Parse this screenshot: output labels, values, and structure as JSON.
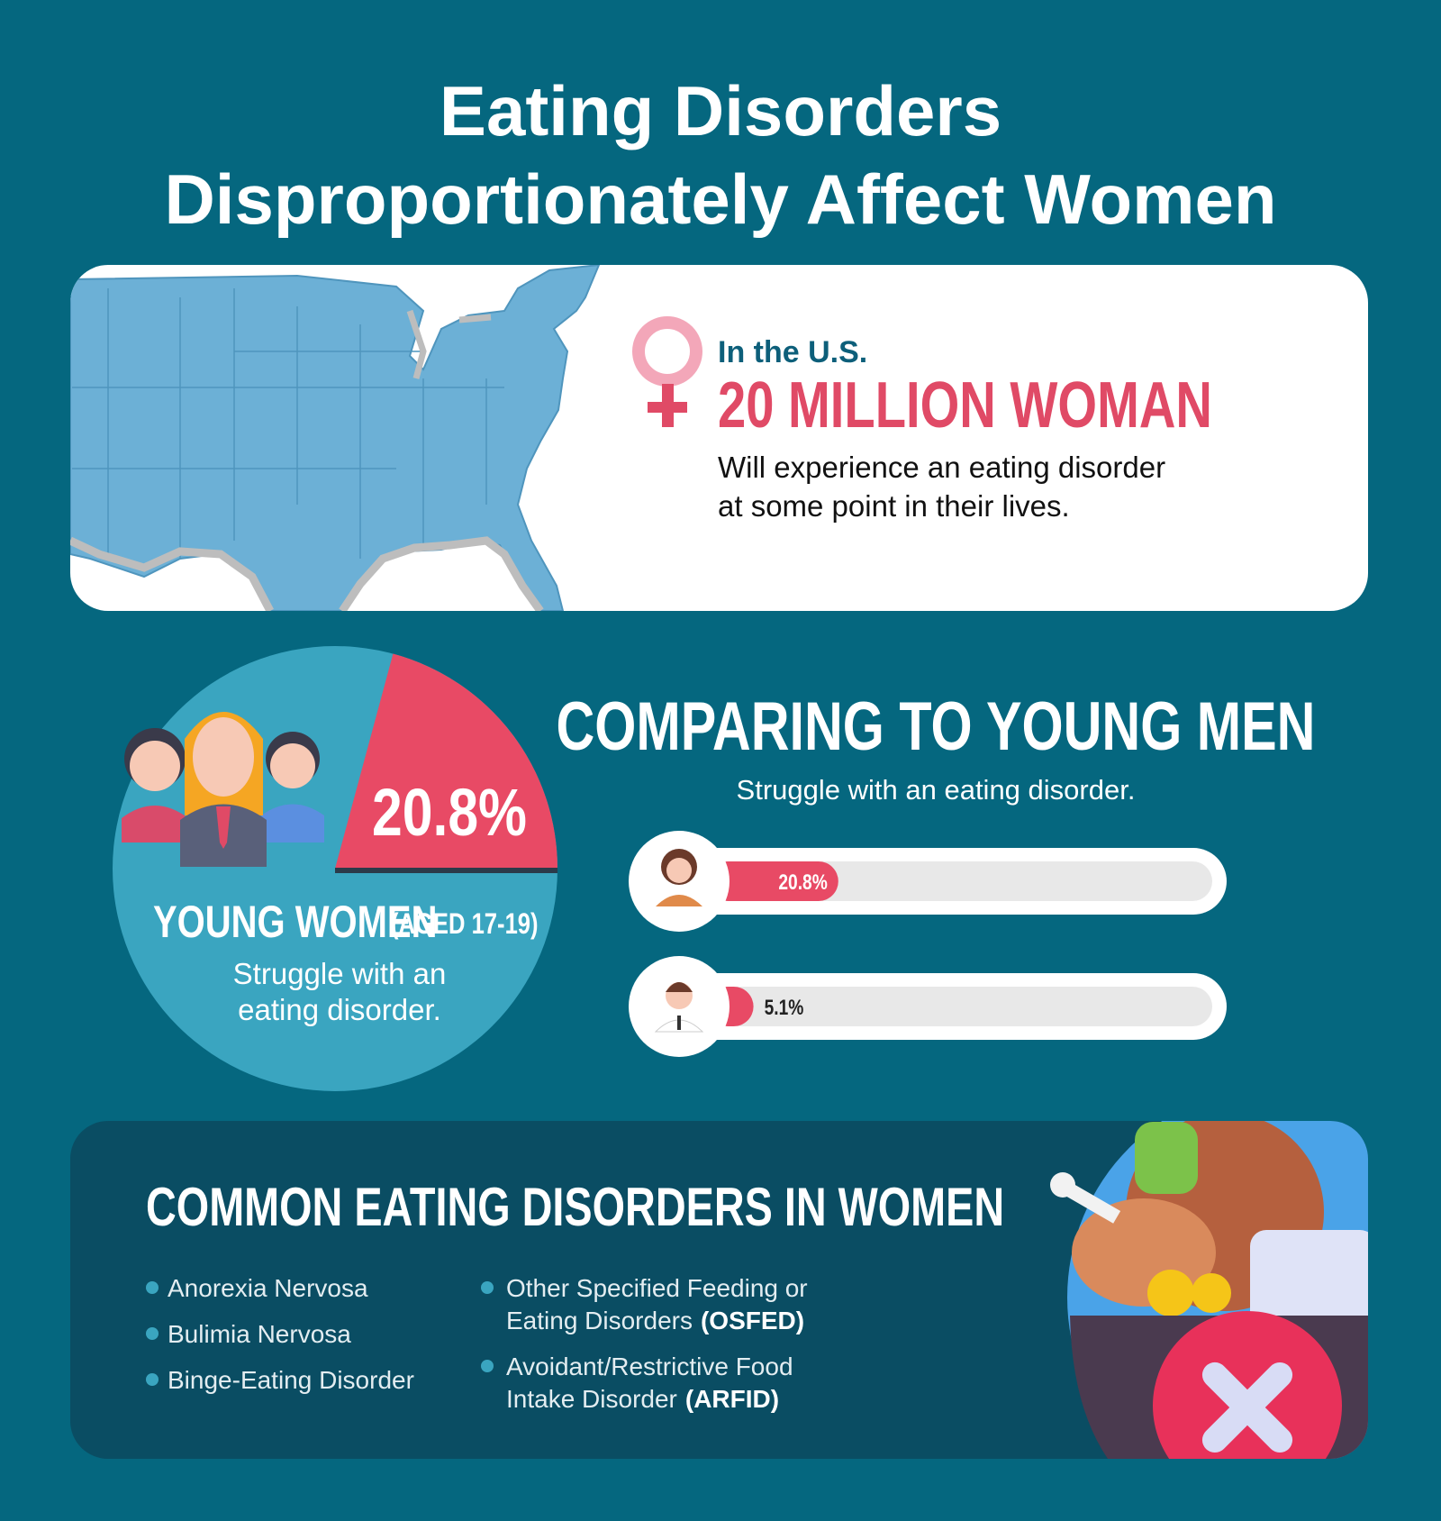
{
  "title": [
    "Eating Disorders",
    "Disproportionately Affect Women"
  ],
  "us_card": {
    "kicker": "In the U.S.",
    "headline": "20 MILLION WOMAN",
    "body": [
      "Will experience an eating disorder",
      "at some point in their lives."
    ]
  },
  "young_women": {
    "percent": {
      "value": 20.8,
      "label": "20.8%"
    },
    "label": "YOUNG WOMEN",
    "age": "(AGED 17-19)",
    "caption": [
      "Struggle with an",
      "eating disorder."
    ]
  },
  "comparison": {
    "title": "COMPARING TO YOUNG MEN",
    "subtitle": "Struggle with an eating disorder.",
    "bars": [
      {
        "value": 20.8,
        "label": "20.8%"
      },
      {
        "value": 5.1,
        "label": "5.1%"
      }
    ]
  },
  "disorders": {
    "title": "COMMON EATING DISORDERS IN WOMEN",
    "left": [
      "Anorexia Nervosa",
      "Bulimia Nervosa",
      "Binge-Eating Disorder"
    ],
    "right": [
      {
        "lines": [
          "Other Specified Feeding or",
          "Eating Disorders"
        ],
        "abbr": "(OSFED)"
      },
      {
        "lines": [
          "Avoidant/Restrictive Food",
          "Intake Disorder"
        ],
        "abbr": "(ARFID)"
      }
    ]
  }
}
